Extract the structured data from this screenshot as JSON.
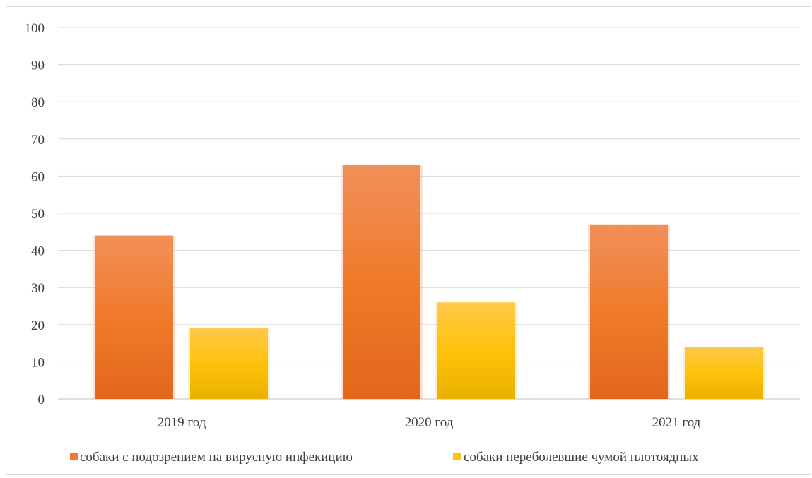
{
  "chart_data": {
    "type": "bar",
    "categories": [
      "2019 год",
      "2020 год",
      "2021 год"
    ],
    "series": [
      {
        "name": "собаки с подозрением на вирусную инфекицию",
        "values": [
          44,
          63,
          47
        ],
        "color": "#f07a2a"
      },
      {
        "name": "собаки переболевшие чумой плотоядных",
        "values": [
          19,
          26,
          14
        ],
        "color": "#ffc21a"
      }
    ],
    "ylim": [
      0,
      100
    ],
    "yticks": [
      0,
      10,
      20,
      30,
      40,
      50,
      60,
      70,
      80,
      90,
      100
    ],
    "grid": true,
    "legend_position": "bottom"
  }
}
